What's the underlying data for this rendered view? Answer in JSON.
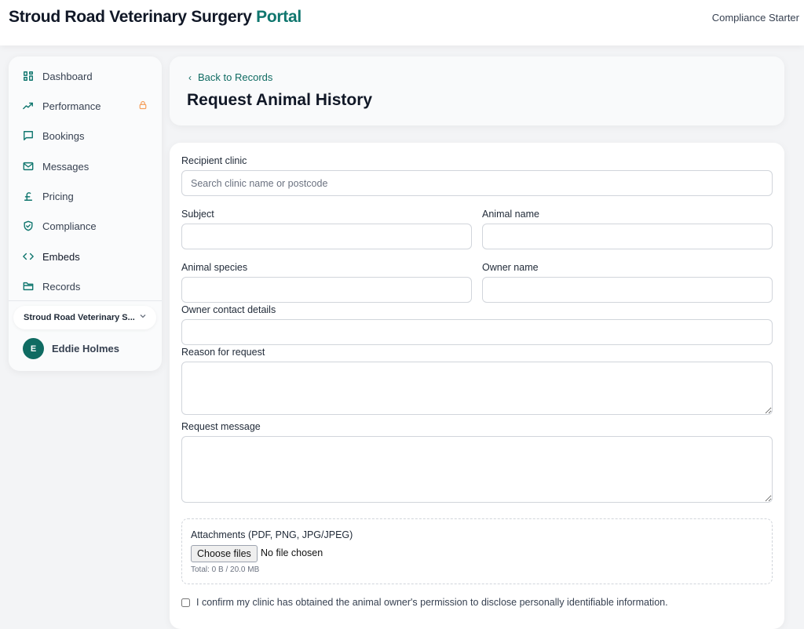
{
  "header": {
    "brand": "Stroud Road Veterinary Surgery",
    "brand_accent": "Portal",
    "plan": "Compliance Starter"
  },
  "sidebar": {
    "items": [
      {
        "label": "Dashboard",
        "icon": "grid-icon"
      },
      {
        "label": "Performance",
        "icon": "trending-up-icon",
        "locked": true
      },
      {
        "label": "Bookings",
        "icon": "chat-icon"
      },
      {
        "label": "Messages",
        "icon": "mail-icon"
      },
      {
        "label": "Pricing",
        "icon": "pound-icon"
      },
      {
        "label": "Compliance",
        "icon": "shield-icon"
      },
      {
        "label": "Embeds",
        "icon": "code-icon"
      },
      {
        "label": "Records",
        "icon": "folder-icon"
      }
    ],
    "clinic": "Stroud Road Veterinary S...",
    "user": {
      "initial": "E",
      "name": "Eddie Holmes"
    }
  },
  "page": {
    "back": "Back to Records",
    "title": "Request Animal History"
  },
  "form": {
    "recipient_label": "Recipient clinic",
    "recipient_placeholder": "Search clinic name or postcode",
    "subject_label": "Subject",
    "animal_name_label": "Animal name",
    "species_label": "Animal species",
    "owner_name_label": "Owner name",
    "owner_contact_label": "Owner contact details",
    "reason_label": "Reason for request",
    "message_label": "Request message",
    "attachments_label": "Attachments (PDF, PNG, JPG/JPEG)",
    "choose_files": "Choose files",
    "no_file": "No file chosen",
    "total": "Total: 0 B / 20.0 MB",
    "confirm": "I confirm my clinic has obtained the animal owner's permission to disclose personally identifiable information."
  },
  "colors": {
    "accent": "#0f766e",
    "lock": "#f59e5b"
  }
}
